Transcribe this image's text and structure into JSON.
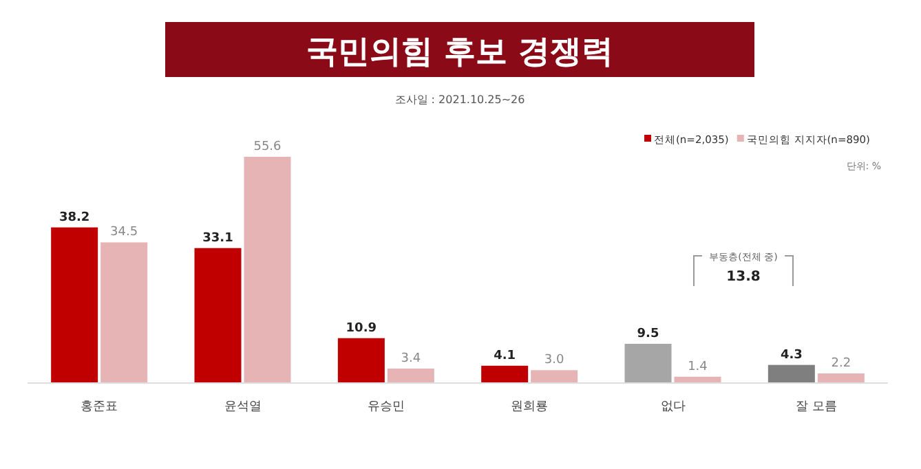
{
  "chart_data": {
    "type": "bar",
    "title": "국민의힘 후보 경쟁력",
    "subtitle": "조사일 : 2021.10.25~26",
    "categories": [
      "홍준표",
      "윤석열",
      "유승민",
      "원희룡",
      "없다",
      "잘 모름"
    ],
    "series": [
      {
        "name": "전체(n=2,035)",
        "color": "#c00000",
        "colors": [
          "#c00000",
          "#c00000",
          "#c00000",
          "#c00000",
          "#a6a6a6",
          "#7f7f7f"
        ],
        "values": [
          38.2,
          33.1,
          10.9,
          4.1,
          9.5,
          4.3
        ]
      },
      {
        "name": "국민의힘 지지자(n=890)",
        "color": "#e6b4b4",
        "values": [
          34.5,
          55.6,
          3.4,
          3.0,
          1.4,
          2.2
        ],
        "value_labels": [
          "34.5",
          "55.6",
          "3.4",
          "3.0",
          "1.4",
          "2.2"
        ]
      }
    ],
    "data_labels": true,
    "legend": "top right",
    "annotations": [
      "단위: %",
      "부동층(전체 중)",
      "13.8"
    ]
  }
}
